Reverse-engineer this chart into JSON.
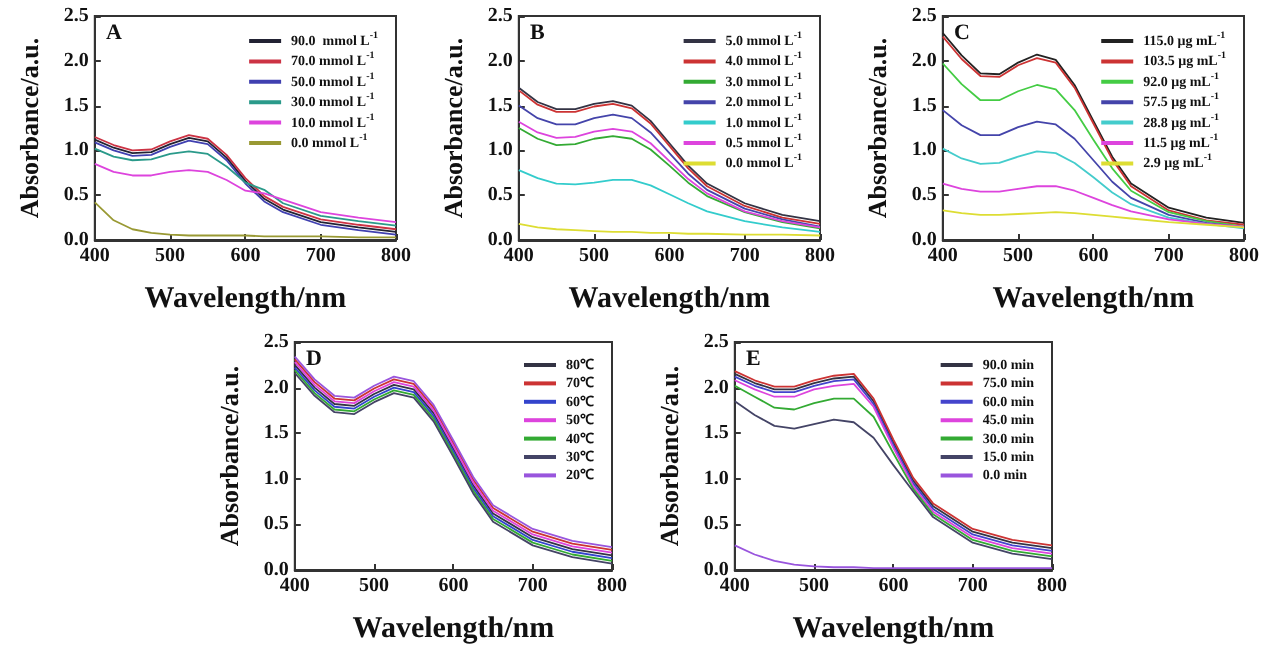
{
  "chart_data": [
    {
      "type": "line",
      "annotations": [
        "A"
      ],
      "xlabel": "Wavelength/nm",
      "ylabel": "Absorbance/a.u.",
      "legend": "top right",
      "grid": false,
      "xlim": [
        400,
        800
      ],
      "xticks": [
        400,
        500,
        600,
        700,
        800
      ],
      "ylim": [
        0,
        2.5
      ],
      "yticks": [
        {
          "value": 0,
          "label": "0.0"
        },
        {
          "value": 0.5,
          "label": "0.5"
        },
        {
          "value": 1,
          "label": "1.0"
        },
        {
          "value": 1.5,
          "label": "1.5"
        },
        {
          "value": 2,
          "label": "2.0"
        },
        {
          "value": 2.5,
          "label": "2.5"
        }
      ],
      "x": [
        400,
        425,
        450,
        475,
        500,
        525,
        550,
        575,
        600,
        625,
        650,
        700,
        750,
        800
      ],
      "series": [
        {
          "name": "90.0  mmol L$^{-1}$",
          "color": "#222233",
          "values": [
            1.12,
            1.03,
            0.97,
            0.98,
            1.07,
            1.14,
            1.1,
            0.92,
            0.66,
            0.46,
            0.34,
            0.2,
            0.14,
            0.09
          ]
        },
        {
          "name": "70.0 mmol L$^{-1}$",
          "color": "#cc3344",
          "values": [
            1.15,
            1.06,
            1.0,
            1.01,
            1.1,
            1.17,
            1.13,
            0.95,
            0.69,
            0.49,
            0.37,
            0.23,
            0.17,
            0.12
          ]
        },
        {
          "name": "50.0 mmol L$^{-1}$",
          "color": "#4040b0",
          "values": [
            1.09,
            1.0,
            0.94,
            0.95,
            1.04,
            1.11,
            1.07,
            0.89,
            0.63,
            0.43,
            0.31,
            0.17,
            0.11,
            0.06
          ]
        },
        {
          "name": "30.0 mmol L$^{-1}$",
          "color": "#2a9a8a",
          "values": [
            1.02,
            0.93,
            0.89,
            0.9,
            0.96,
            0.99,
            0.96,
            0.82,
            0.64,
            0.56,
            0.41,
            0.27,
            0.21,
            0.16
          ]
        },
        {
          "name": "10.0 mmol L$^{-1}$",
          "color": "#dd44dd",
          "values": [
            0.85,
            0.76,
            0.72,
            0.72,
            0.76,
            0.78,
            0.76,
            0.67,
            0.55,
            0.52,
            0.45,
            0.31,
            0.25,
            0.2
          ]
        },
        {
          "name": "0.0 mmol L$^{-1}$",
          "color": "#999933",
          "values": [
            0.42,
            0.22,
            0.12,
            0.08,
            0.06,
            0.05,
            0.05,
            0.05,
            0.05,
            0.04,
            0.04,
            0.04,
            0.03,
            0.03
          ]
        }
      ]
    },
    {
      "type": "line",
      "annotations": [
        "B"
      ],
      "xlabel": "Wavelength/nm",
      "ylabel": "Absorbance/a.u.",
      "legend": "top right",
      "grid": false,
      "xlim": [
        400,
        800
      ],
      "xticks": [
        400,
        500,
        600,
        700,
        800
      ],
      "ylim": [
        0,
        2.5
      ],
      "yticks": [
        {
          "value": 0,
          "label": "0.0"
        },
        {
          "value": 0.5,
          "label": "0.5"
        },
        {
          "value": 1,
          "label": "1.0"
        },
        {
          "value": 1.5,
          "label": "1.5"
        },
        {
          "value": 2,
          "label": "2.0"
        },
        {
          "value": 2.5,
          "label": "2.5"
        }
      ],
      "x": [
        400,
        425,
        450,
        475,
        500,
        525,
        550,
        575,
        600,
        625,
        650,
        700,
        750,
        800
      ],
      "series": [
        {
          "name": "5.0 mmol L$^{-1}$",
          "color": "#333344",
          "values": [
            1.7,
            1.54,
            1.46,
            1.46,
            1.52,
            1.55,
            1.5,
            1.33,
            1.08,
            0.83,
            0.63,
            0.41,
            0.28,
            0.21
          ]
        },
        {
          "name": "4.0 mmol L$^{-1}$",
          "color": "#cc3333",
          "values": [
            1.67,
            1.51,
            1.43,
            1.43,
            1.49,
            1.52,
            1.47,
            1.3,
            1.05,
            0.8,
            0.6,
            0.38,
            0.25,
            0.18
          ]
        },
        {
          "name": "3.0 mmol L$^{-1}$",
          "color": "#33aa33",
          "values": [
            1.25,
            1.13,
            1.06,
            1.07,
            1.13,
            1.16,
            1.13,
            1.01,
            0.83,
            0.64,
            0.49,
            0.31,
            0.2,
            0.13
          ]
        },
        {
          "name": "2.0 mmol L$^{-1}$",
          "color": "#4444aa",
          "values": [
            1.5,
            1.36,
            1.29,
            1.29,
            1.36,
            1.4,
            1.36,
            1.2,
            0.97,
            0.74,
            0.56,
            0.35,
            0.23,
            0.15
          ]
        },
        {
          "name": "1.0 mmol L$^{-1}$",
          "color": "#33cccc",
          "values": [
            0.78,
            0.69,
            0.63,
            0.62,
            0.64,
            0.67,
            0.67,
            0.61,
            0.51,
            0.41,
            0.32,
            0.21,
            0.14,
            0.09
          ]
        },
        {
          "name": "0.5 mmol L$^{-1}$",
          "color": "#dd44dd",
          "values": [
            1.32,
            1.2,
            1.14,
            1.15,
            1.21,
            1.24,
            1.21,
            1.08,
            0.88,
            0.68,
            0.52,
            0.32,
            0.21,
            0.14
          ]
        },
        {
          "name": "0.0 mmol L$^{-1}$",
          "color": "#dddd33",
          "values": [
            0.18,
            0.14,
            0.12,
            0.11,
            0.1,
            0.09,
            0.09,
            0.08,
            0.08,
            0.07,
            0.07,
            0.06,
            0.06,
            0.05
          ]
        }
      ]
    },
    {
      "type": "line",
      "annotations": [
        "C"
      ],
      "xlabel": "Wavelength/nm",
      "ylabel": "Absorbance/a.u.",
      "legend": "top right",
      "grid": false,
      "xlim": [
        400,
        800
      ],
      "xticks": [
        400,
        500,
        600,
        700,
        800
      ],
      "ylim": [
        0,
        2.5
      ],
      "yticks": [
        {
          "value": 0,
          "label": "0.0"
        },
        {
          "value": 0.5,
          "label": "0.5"
        },
        {
          "value": 1,
          "label": "1.0"
        },
        {
          "value": 1.5,
          "label": "1.5"
        },
        {
          "value": 2,
          "label": "2.0"
        },
        {
          "value": 2.5,
          "label": "2.5"
        }
      ],
      "x": [
        400,
        425,
        450,
        475,
        500,
        525,
        550,
        575,
        600,
        625,
        650,
        700,
        750,
        800
      ],
      "series": [
        {
          "name": "115.0 μg mL$^{-1}$",
          "color": "#222222",
          "values": [
            2.31,
            2.06,
            1.86,
            1.85,
            1.98,
            2.07,
            2.01,
            1.73,
            1.33,
            0.93,
            0.63,
            0.36,
            0.25,
            0.19
          ]
        },
        {
          "name": "103.5 μg mL$^{-1}$",
          "color": "#cc3333",
          "values": [
            2.27,
            2.02,
            1.83,
            1.82,
            1.95,
            2.03,
            1.98,
            1.7,
            1.3,
            0.9,
            0.6,
            0.33,
            0.22,
            0.17
          ]
        },
        {
          "name": "92.0 μg mL$^{-1}$",
          "color": "#44cc44",
          "values": [
            1.97,
            1.74,
            1.56,
            1.56,
            1.66,
            1.73,
            1.68,
            1.45,
            1.12,
            0.8,
            0.55,
            0.31,
            0.21,
            0.15
          ]
        },
        {
          "name": "57.5 μg mL$^{-1}$",
          "color": "#4444aa",
          "values": [
            1.45,
            1.28,
            1.17,
            1.17,
            1.26,
            1.32,
            1.29,
            1.13,
            0.89,
            0.65,
            0.47,
            0.28,
            0.19,
            0.14
          ]
        },
        {
          "name": "28.8 μg mL$^{-1}$",
          "color": "#44cccc",
          "values": [
            1.02,
            0.91,
            0.85,
            0.86,
            0.93,
            0.99,
            0.97,
            0.86,
            0.7,
            0.53,
            0.4,
            0.25,
            0.18,
            0.13
          ]
        },
        {
          "name": "11.5 μg mL$^{-1}$",
          "color": "#dd44dd",
          "values": [
            0.63,
            0.57,
            0.54,
            0.54,
            0.57,
            0.6,
            0.6,
            0.55,
            0.47,
            0.39,
            0.32,
            0.23,
            0.18,
            0.15
          ]
        },
        {
          "name": "2.9 μg mL$^{-1}$",
          "color": "#dddd33",
          "values": [
            0.33,
            0.3,
            0.28,
            0.28,
            0.29,
            0.3,
            0.31,
            0.3,
            0.28,
            0.26,
            0.24,
            0.2,
            0.17,
            0.14
          ]
        }
      ]
    },
    {
      "type": "line",
      "annotations": [
        "D"
      ],
      "xlabel": "Wavelength/nm",
      "ylabel": "Absorbance/a.u.",
      "legend": "top right",
      "grid": false,
      "xlim": [
        400,
        800
      ],
      "xticks": [
        400,
        500,
        600,
        700,
        800
      ],
      "ylim": [
        0,
        2.5
      ],
      "yticks": [
        {
          "value": 0,
          "label": "0.0"
        },
        {
          "value": 0.5,
          "label": "0.5"
        },
        {
          "value": 1,
          "label": "1.0"
        },
        {
          "value": 1.5,
          "label": "1.5"
        },
        {
          "value": 2,
          "label": "2.0"
        },
        {
          "value": 2.5,
          "label": "2.5"
        }
      ],
      "x": [
        400,
        425,
        450,
        475,
        500,
        525,
        550,
        575,
        600,
        625,
        650,
        700,
        750,
        800
      ],
      "series": [
        {
          "name": "80℃",
          "color": "#333344",
          "values": [
            2.25,
            2.0,
            1.82,
            1.8,
            1.93,
            2.03,
            1.98,
            1.72,
            1.33,
            0.93,
            0.62,
            0.36,
            0.23,
            0.16
          ]
        },
        {
          "name": "70℃",
          "color": "#cc3333",
          "values": [
            2.31,
            2.06,
            1.88,
            1.86,
            1.99,
            2.09,
            2.04,
            1.78,
            1.39,
            0.99,
            0.68,
            0.42,
            0.29,
            0.22
          ]
        },
        {
          "name": "60℃",
          "color": "#3344cc",
          "values": [
            2.22,
            1.97,
            1.79,
            1.77,
            1.9,
            2.0,
            1.95,
            1.69,
            1.3,
            0.9,
            0.59,
            0.33,
            0.2,
            0.13
          ]
        },
        {
          "name": "50℃",
          "color": "#dd44dd",
          "values": [
            2.28,
            2.03,
            1.85,
            1.83,
            1.96,
            2.06,
            2.01,
            1.75,
            1.36,
            0.96,
            0.65,
            0.39,
            0.26,
            0.19
          ]
        },
        {
          "name": "40℃",
          "color": "#33aa33",
          "values": [
            2.19,
            1.94,
            1.76,
            1.74,
            1.87,
            1.97,
            1.92,
            1.66,
            1.27,
            0.87,
            0.56,
            0.3,
            0.17,
            0.1
          ]
        },
        {
          "name": "30℃",
          "color": "#444466",
          "values": [
            2.16,
            1.91,
            1.73,
            1.71,
            1.84,
            1.94,
            1.89,
            1.63,
            1.24,
            0.84,
            0.53,
            0.27,
            0.14,
            0.07
          ]
        },
        {
          "name": "20℃",
          "color": "#9955dd",
          "values": [
            2.34,
            2.09,
            1.91,
            1.89,
            2.02,
            2.12,
            2.07,
            1.81,
            1.42,
            1.02,
            0.71,
            0.45,
            0.32,
            0.25
          ]
        }
      ]
    },
    {
      "type": "line",
      "annotations": [
        "E"
      ],
      "xlabel": "Wavelength/nm",
      "ylabel": "Absorbance/a.u.",
      "legend": "top right",
      "grid": false,
      "xlim": [
        400,
        800
      ],
      "xticks": [
        400,
        500,
        600,
        700,
        800
      ],
      "ylim": [
        0,
        2.5
      ],
      "yticks": [
        {
          "value": 0,
          "label": "0.0"
        },
        {
          "value": 0.5,
          "label": "0.5"
        },
        {
          "value": 1,
          "label": "1.0"
        },
        {
          "value": 1.5,
          "label": "1.5"
        },
        {
          "value": 2,
          "label": "2.0"
        },
        {
          "value": 2.5,
          "label": "2.5"
        }
      ],
      "x": [
        400,
        425,
        450,
        475,
        500,
        525,
        550,
        575,
        600,
        625,
        650,
        700,
        750,
        800
      ],
      "series": [
        {
          "name": "90.0 min",
          "color": "#333344",
          "values": [
            2.15,
            2.05,
            1.98,
            1.98,
            2.05,
            2.1,
            2.12,
            1.85,
            1.4,
            0.98,
            0.7,
            0.42,
            0.3,
            0.24
          ]
        },
        {
          "name": "75.0 min",
          "color": "#cc3333",
          "values": [
            2.18,
            2.08,
            2.01,
            2.01,
            2.08,
            2.13,
            2.15,
            1.88,
            1.43,
            1.01,
            0.73,
            0.45,
            0.33,
            0.27
          ]
        },
        {
          "name": "60.0 min",
          "color": "#4444cc",
          "values": [
            2.12,
            2.02,
            1.95,
            1.95,
            2.02,
            2.07,
            2.09,
            1.82,
            1.37,
            0.95,
            0.67,
            0.39,
            0.27,
            0.21
          ]
        },
        {
          "name": "45.0 min",
          "color": "#dd44dd",
          "values": [
            2.08,
            1.98,
            1.9,
            1.9,
            1.98,
            2.02,
            2.04,
            1.79,
            1.34,
            0.92,
            0.64,
            0.36,
            0.24,
            0.18
          ]
        },
        {
          "name": "30.0 min",
          "color": "#33aa33",
          "values": [
            2.02,
            1.9,
            1.78,
            1.76,
            1.83,
            1.88,
            1.88,
            1.68,
            1.28,
            0.89,
            0.61,
            0.33,
            0.21,
            0.15
          ]
        },
        {
          "name": "15.0 min",
          "color": "#444466",
          "values": [
            1.85,
            1.7,
            1.58,
            1.55,
            1.6,
            1.65,
            1.62,
            1.45,
            1.15,
            0.86,
            0.58,
            0.3,
            0.18,
            0.12
          ]
        },
        {
          "name": "0.0 min",
          "color": "#9955dd",
          "values": [
            0.27,
            0.17,
            0.1,
            0.06,
            0.04,
            0.03,
            0.03,
            0.02,
            0.02,
            0.02,
            0.02,
            0.02,
            0.02,
            0.02
          ]
        }
      ]
    }
  ]
}
